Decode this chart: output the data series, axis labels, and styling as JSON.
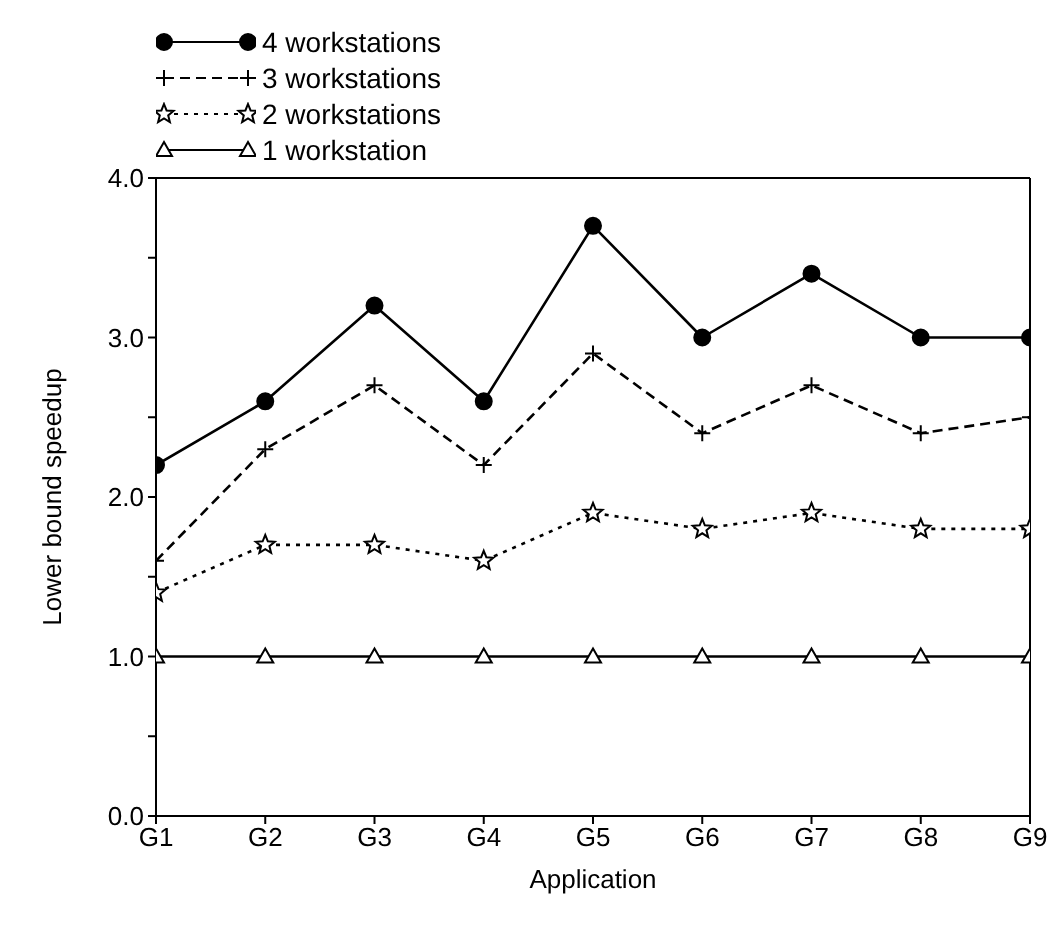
{
  "chart_data": {
    "type": "line",
    "xlabel": "Application",
    "ylabel": "Lower bound speedup",
    "categories": [
      "G1",
      "G2",
      "G3",
      "G4",
      "G5",
      "G6",
      "G7",
      "G8",
      "G9"
    ],
    "series": [
      {
        "name": "4 workstations",
        "color": "#000000",
        "marker": "circle",
        "line_style": "solid",
        "values": [
          2.2,
          2.6,
          3.2,
          2.6,
          3.7,
          3.0,
          3.4,
          3.0,
          3.0
        ]
      },
      {
        "name": "3 workstations",
        "color": "#000000",
        "marker": "cross",
        "line_style": "dashed",
        "values": [
          1.6,
          2.3,
          2.7,
          2.2,
          2.9,
          2.4,
          2.7,
          2.4,
          2.5
        ]
      },
      {
        "name": "2 workstations",
        "color": "#000000",
        "marker": "star",
        "line_style": "dotted",
        "values": [
          1.4,
          1.7,
          1.7,
          1.6,
          1.9,
          1.8,
          1.9,
          1.8,
          1.8
        ]
      },
      {
        "name": "1 workstation",
        "color": "#000000",
        "marker": "triangle",
        "line_style": "solid",
        "values": [
          1.0,
          1.0,
          1.0,
          1.0,
          1.0,
          1.0,
          1.0,
          1.0,
          1.0
        ]
      }
    ],
    "ylim": [
      0,
      4
    ],
    "yticks": [
      {
        "value": 0,
        "label": "0.0"
      },
      {
        "value": 0.5,
        "label": null
      },
      {
        "value": 1,
        "label": "1.0"
      },
      {
        "value": 1.5,
        "label": null
      },
      {
        "value": 2,
        "label": "2.0"
      },
      {
        "value": 2.5,
        "label": null
      },
      {
        "value": 3,
        "label": "3.0"
      },
      {
        "value": 3.5,
        "label": null
      },
      {
        "value": 4,
        "label": "4.0"
      }
    ],
    "grid": false,
    "legend": "top left"
  }
}
